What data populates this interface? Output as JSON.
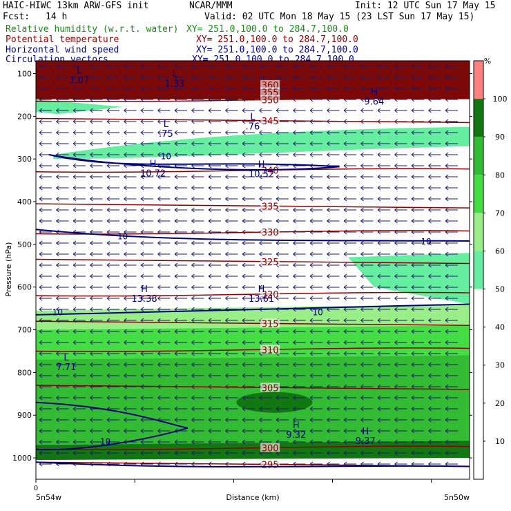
{
  "header": {
    "title": "HAIC-HIWC 13km ARW-GFS init",
    "org": "NCAR/MMM",
    "init": "Init: 12 UTC Sun 17 May 15",
    "fcst_label": "Fcst:",
    "fcst_value": "14 h",
    "valid": "Valid: 02 UTC Mon 18 May 15 (23 LST Sun 17 May 15)"
  },
  "fields": [
    {
      "name": "Relative humidity (w.r.t. water)",
      "xy": "XY= 251.0,100.0 to 284.7,100.0",
      "color": "#1a8a1a"
    },
    {
      "name": "Potential temperature",
      "xy": "XY= 251.0,100.0 to 284.7,100.0",
      "color": "#8b0000"
    },
    {
      "name": "Horizontal wind speed",
      "xy": "XY= 251.0,100.0 to 284.7,100.0",
      "color": "#00008b"
    },
    {
      "name": "Circulation vectors",
      "xy": "XY= 251.0,100.0 to 284.7,100.0",
      "color": "#00008b"
    }
  ],
  "chart_data": {
    "type": "heatmap",
    "title": "HAIC-HIWC 13km ARW-GFS init",
    "ylabel": "Pressure (hPa)",
    "xlabel": "Distance (km)",
    "x_left_label": "5n54w",
    "x_right_label": "5n50w",
    "x_zero_label": "0",
    "yticks": [
      100,
      200,
      300,
      400,
      500,
      600,
      700,
      800,
      900,
      1000
    ],
    "ylim": [
      1050,
      70
    ],
    "colorbar": {
      "unit": "%",
      "ticks": [
        10,
        20,
        30,
        40,
        50,
        60,
        70,
        80,
        90,
        100
      ],
      "bands": [
        {
          "from": 0,
          "to": 50,
          "color": "#ffffff"
        },
        {
          "from": 50,
          "to": 60,
          "color": "#66eea0"
        },
        {
          "from": 60,
          "to": 70,
          "color": "#99ee88"
        },
        {
          "from": 70,
          "to": 80,
          "color": "#44dd44"
        },
        {
          "from": 80,
          "to": 90,
          "color": "#33bb33"
        },
        {
          "from": 90,
          "to": 100,
          "color": "#117711"
        },
        {
          "from": 100,
          "to": 110,
          "color": "#ff8080"
        }
      ]
    },
    "theta_contours": [
      {
        "label": "360",
        "p": 130
      },
      {
        "label": "355",
        "p": 138
      },
      {
        "label": "350",
        "p": 165
      },
      {
        "label": "345",
        "p": 205
      },
      {
        "label": "340",
        "p": 330
      },
      {
        "label": "335",
        "p": 405
      },
      {
        "label": "330",
        "p": 475
      },
      {
        "label": "325",
        "p": 535
      },
      {
        "label": "320",
        "p": 620
      },
      {
        "label": "315",
        "p": 680
      },
      {
        "label": "310",
        "p": 750
      },
      {
        "label": "305",
        "p": 830
      },
      {
        "label": "300",
        "p": 980
      },
      {
        "label": "295",
        "p": 1010
      }
    ],
    "wind_labels": [
      {
        "label": "10",
        "x": 0.9,
        "p": 492
      },
      {
        "label": "10",
        "x": 0.05,
        "p": 658
      },
      {
        "label": "10",
        "x": 0.3,
        "p": 292
      },
      {
        "label": "10",
        "x": 0.2,
        "p": 480
      },
      {
        "label": "10",
        "x": 0.16,
        "p": 960
      },
      {
        "label": "10",
        "x": 0.65,
        "p": 658
      }
    ],
    "extrema": [
      {
        "kind": "L",
        "value": "1.07",
        "x": 0.1,
        "p": 100
      },
      {
        "kind": "L",
        "value": "1.33",
        "x": 0.32,
        "p": 108
      },
      {
        "kind": "H",
        "value": "9.64",
        "x": 0.78,
        "p": 150
      },
      {
        "kind": "L",
        "value": ".75",
        "x": 0.3,
        "p": 225
      },
      {
        "kind": "L",
        "value": ".76",
        "x": 0.5,
        "p": 208
      },
      {
        "kind": "H",
        "value": "10.72",
        "x": 0.27,
        "p": 318
      },
      {
        "kind": "H",
        "value": "10.52",
        "x": 0.52,
        "p": 320
      },
      {
        "kind": "H",
        "value": "13.38",
        "x": 0.25,
        "p": 612
      },
      {
        "kind": "H",
        "value": "13.61",
        "x": 0.52,
        "p": 612
      },
      {
        "kind": "L",
        "value": "7.71",
        "x": 0.07,
        "p": 772
      },
      {
        "kind": "H",
        "value": "9.32",
        "x": 0.6,
        "p": 930
      },
      {
        "kind": "H",
        "value": "9.37",
        "x": 0.76,
        "p": 945
      }
    ]
  }
}
